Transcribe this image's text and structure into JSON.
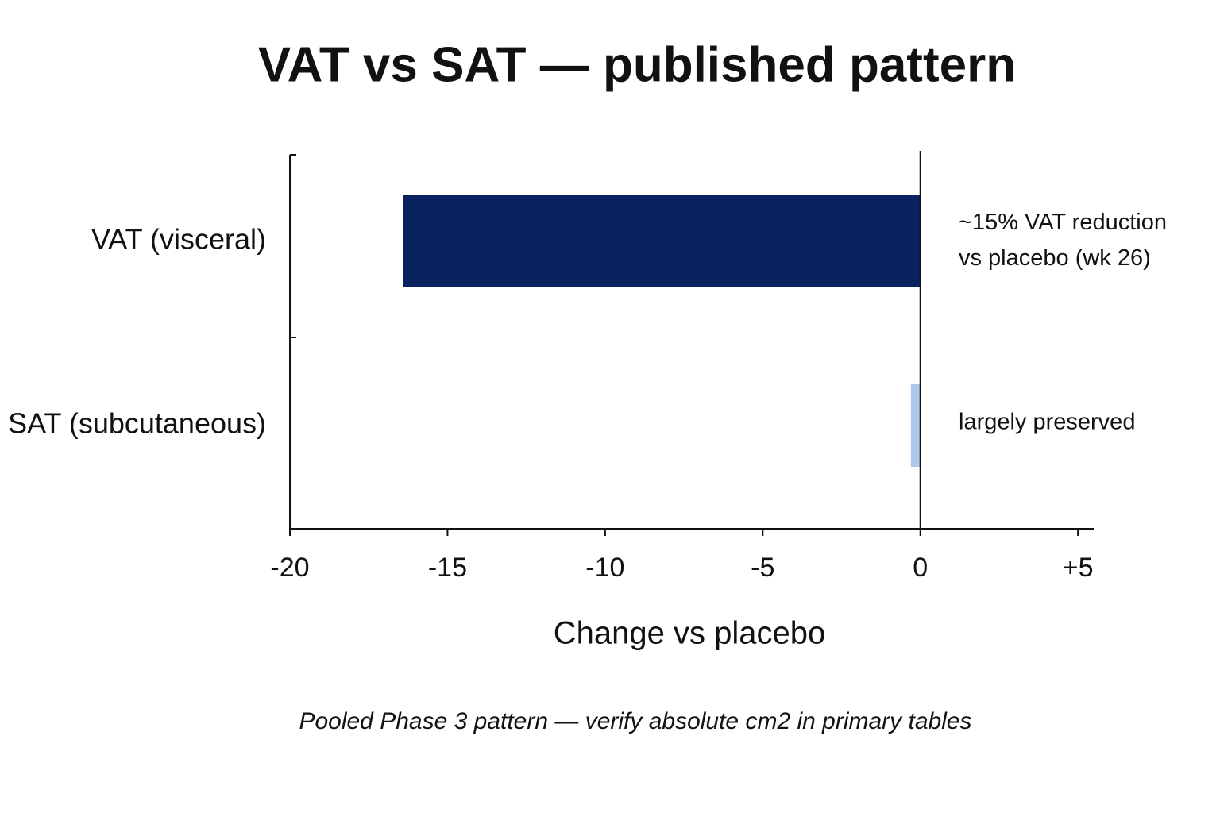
{
  "chart_data": {
    "type": "barh",
    "title": "VAT vs SAT — published pattern",
    "categories": [
      "VAT (visceral)",
      "SAT (subcutaneous)"
    ],
    "values": [
      -16.4,
      -0.3
    ],
    "colors": [
      "#0a2260",
      "#aec9ec"
    ],
    "annotations": [
      [
        "~15% VAT reduction",
        "vs placebo (wk 26)"
      ],
      [
        "largely preserved"
      ]
    ],
    "xlabel": "Change vs placebo",
    "xlim": [
      -20,
      5.5
    ],
    "xticks": [
      -20,
      -15,
      -10,
      -5,
      0,
      {
        "value": 5,
        "label": "+5"
      }
    ],
    "footnote": "Pooled Phase 3 pattern — verify absolute cm2 in primary tables"
  }
}
